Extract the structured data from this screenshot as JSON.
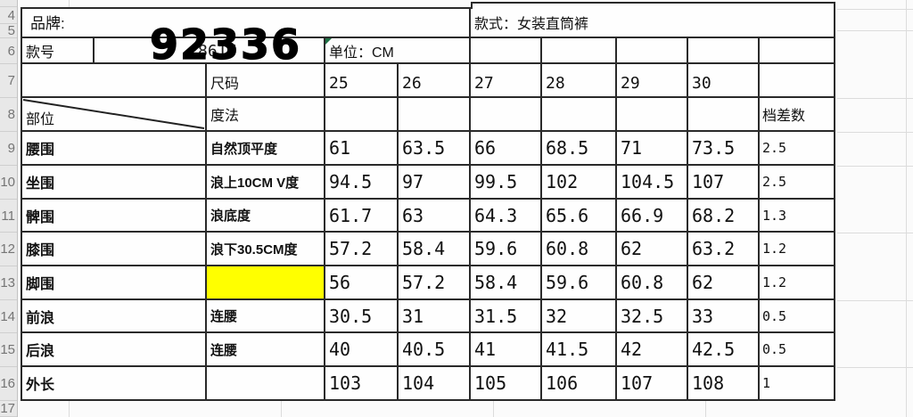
{
  "colors": {
    "highlight": "#ffff00",
    "table_border": "#2a2a2a",
    "light_grid": "#dcdcdc",
    "green_indicator": "#1e7145",
    "row_header_bg": "#e8e8e8"
  },
  "sheet": {
    "row_numbers": [
      "4",
      "5",
      "6",
      "7",
      "8",
      "9",
      "10",
      "11",
      "12",
      "13",
      "14",
      "15",
      "16",
      "17"
    ]
  },
  "header": {
    "brand_label": "品牌:",
    "style_label": "款式：女装直筒裤",
    "style_no_label": "款号",
    "style_no_cell_value": "8617",
    "style_no_overlay": "92336",
    "unit_label": "单位：CM",
    "size_label": "尺码",
    "sizes": [
      "25",
      "26",
      "27",
      "28",
      "29",
      "30"
    ],
    "part_label": "部位",
    "method_label": "度法",
    "grading_label": "档差数"
  },
  "table": {
    "rows": [
      {
        "part": "腰围",
        "method": "自然顶平度",
        "values": [
          "61",
          "63.5",
          "66",
          "68.5",
          "71",
          "73.5"
        ],
        "grading": "2.5",
        "method_highlight": false
      },
      {
        "part": "坐围",
        "method": "浪上10CM V度",
        "values": [
          "94.5",
          "97",
          "99.5",
          "102",
          "104.5",
          "107"
        ],
        "grading": "2.5",
        "method_highlight": false
      },
      {
        "part": "髀围",
        "method": "浪底度",
        "values": [
          "61.7",
          "63",
          "64.3",
          "65.6",
          "66.9",
          "68.2"
        ],
        "grading": "1.3",
        "method_highlight": false
      },
      {
        "part": "膝围",
        "method": "浪下30.5CM度",
        "values": [
          "57.2",
          "58.4",
          "59.6",
          "60.8",
          "62",
          "63.2"
        ],
        "grading": "1.2",
        "method_highlight": false
      },
      {
        "part": "脚围",
        "method": "",
        "values": [
          "56",
          "57.2",
          "58.4",
          "59.6",
          "60.8",
          "62"
        ],
        "grading": "1.2",
        "method_highlight": true
      },
      {
        "part": "前浪",
        "method": "连腰",
        "values": [
          "30.5",
          "31",
          "31.5",
          "32",
          "32.5",
          "33"
        ],
        "grading": "0.5",
        "method_highlight": false
      },
      {
        "part": "后浪",
        "method": "连腰",
        "values": [
          "40",
          "40.5",
          "41",
          "41.5",
          "42",
          "42.5"
        ],
        "grading": "0.5",
        "method_highlight": false
      },
      {
        "part": "外长",
        "method": "",
        "values": [
          "103",
          "104",
          "105",
          "106",
          "107",
          "108"
        ],
        "grading": "1",
        "method_highlight": false
      }
    ]
  }
}
